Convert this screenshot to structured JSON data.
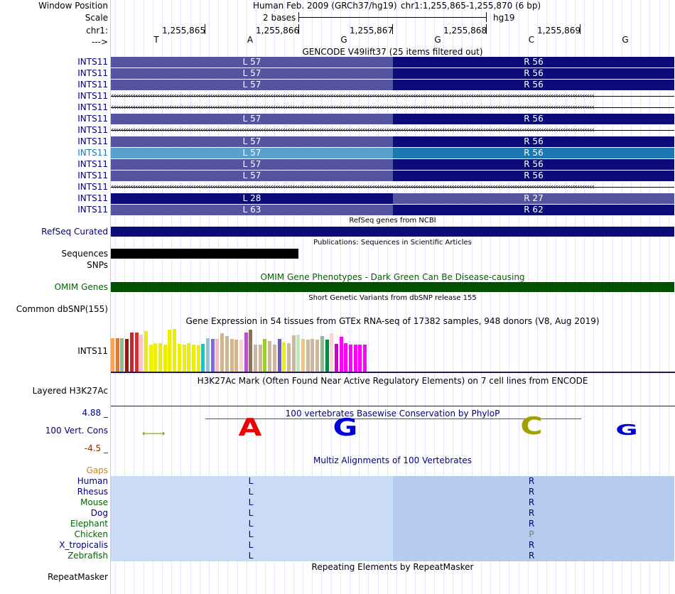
{
  "header": {
    "window_position": "Window Position",
    "assembly": "Human Feb. 2009 (GRCh37/hg19)",
    "position": "chr1:1,255,865-1,255,870 (6 bp)",
    "scale_label": "Scale",
    "scale_value": "2 bases",
    "scale_db": "hg19",
    "chrom_label": "chr1:",
    "arrow_label": "--->",
    "coords": [
      "1,255,865",
      "1,255,866",
      "1,255,867",
      "1,255,868",
      "1,255,869"
    ],
    "bases": [
      "T",
      "A",
      "G",
      "G",
      "C",
      "G"
    ]
  },
  "gencode": {
    "title": "GENCODE V49lift37 (25 items filtered out)",
    "rows": [
      {
        "name": "INTS11",
        "type": "block",
        "left": "L 57",
        "right": "R 56",
        "style": "a"
      },
      {
        "name": "INTS11",
        "type": "block",
        "left": "L 57",
        "right": "R 56",
        "style": "a"
      },
      {
        "name": "INTS11",
        "type": "block",
        "left": "L 57",
        "right": "R 56",
        "style": "a"
      },
      {
        "name": "INTS11",
        "type": "intron"
      },
      {
        "name": "INTS11",
        "type": "intron"
      },
      {
        "name": "INTS11",
        "type": "block",
        "left": "L 57",
        "right": "R 56",
        "style": "a"
      },
      {
        "name": "INTS11",
        "type": "intron"
      },
      {
        "name": "INTS11",
        "type": "block",
        "left": "L 57",
        "right": "R 56",
        "style": "a"
      },
      {
        "name": "INTS11",
        "type": "block",
        "left": "L 57",
        "right": "R 56",
        "style": "hl"
      },
      {
        "name": "INTS11",
        "type": "block",
        "left": "L 57",
        "right": "R 56",
        "style": "a"
      },
      {
        "name": "INTS11",
        "type": "block",
        "left": "L 57",
        "right": "R 56",
        "style": "a"
      },
      {
        "name": "INTS11",
        "type": "intron"
      },
      {
        "name": "INTS11",
        "type": "block",
        "left": "L 28",
        "right": "R 27",
        "style": "b"
      },
      {
        "name": "INTS11",
        "type": "block",
        "left": "L 63",
        "right": "R 62",
        "style": "a"
      }
    ]
  },
  "refseq": {
    "title": "RefSeq genes from NCBI",
    "label": "RefSeq Curated"
  },
  "publications": {
    "title": "Publications: Sequences in Scientific Articles",
    "seq_label": "Sequences",
    "snp_label": "SNPs"
  },
  "omim": {
    "title": "OMIM Gene Phenotypes - Dark Green Can Be Disease-causing",
    "label": "OMIM Genes"
  },
  "dbsnp": {
    "title": "Short Genetic Variants from dbSNP release 155",
    "label": "Common dbSNP(155)"
  },
  "gtex": {
    "title": "Gene Expression in 54 tissues from GTEx RNA-seq of 17382 samples, 948 donors (V8, Aug 2019)",
    "label": "INTS11",
    "levels": [
      0.75,
      0.75,
      0.75,
      0.73,
      0.87,
      0.87,
      0.83,
      0.9,
      0.6,
      0.63,
      0.63,
      0.6,
      0.94,
      0.96,
      0.62,
      0.6,
      0.63,
      0.6,
      0.58,
      0.62,
      0.75,
      0.73,
      0.73,
      0.85,
      0.79,
      0.73,
      0.71,
      0.71,
      0.87,
      0.94,
      0.6,
      0.6,
      0.73,
      0.69,
      0.6,
      0.73,
      0.65,
      0.63,
      0.81,
      0.83,
      0.73,
      0.71,
      0.73,
      0.71,
      0.79,
      0.71,
      0.85,
      0.62,
      0.77,
      0.63,
      0.6,
      0.6,
      0.6,
      0.6
    ],
    "colors": [
      "#FFA54F",
      "#EE7621",
      "#8FBC8F",
      "#8B1A1A",
      "#CD2626",
      "#CD3333",
      "#FFC1C1",
      "#EEEE00",
      "#EEEE00",
      "#EEEE00",
      "#EEEE00",
      "#EEEE00",
      "#EEEE00",
      "#EEEE00",
      "#EEEE00",
      "#EEEE00",
      "#EEEE00",
      "#EEEE00",
      "#EEEE00",
      "#00CDCD",
      "#9AC0CD",
      "#7A67EE",
      "#FFB6C1",
      "#D2B48C",
      "#D2B48C",
      "#D2B48C",
      "#D2B48C",
      "#FFD4D4",
      "#B452CD",
      "#8B7355",
      "#CDB79E",
      "#CDB79E",
      "#9ACD32",
      "#CDB79E",
      "#CDB79E",
      "#6A5ACD",
      "#EEEE00",
      "#CDB79E",
      "#CDB79E",
      "#B4EEB4",
      "#EEC591",
      "#CDB79E",
      "#CDB79E",
      "#CDB79E",
      "#8FBC8F",
      "#008B45",
      "#FFD4D4",
      "#CD00CD",
      "#FF00FF",
      "#FF00FF",
      "#FF00FF",
      "#FF00FF",
      "#FF00FF",
      "#FF00FF"
    ]
  },
  "h3k27ac": {
    "title": "H3K27Ac Mark (Often Found Near Active Regulatory Elements) on 7 cell lines from ENCODE",
    "label": "Layered H3K27Ac"
  },
  "conservation": {
    "title": "100 vertebrates Basewise Conservation by PhyloP",
    "label": "100 Vert. Cons",
    "y_max": "4.88 _",
    "y_min": "-4.5 _",
    "letters": [
      {
        "base": "A",
        "color": "#EE0000"
      },
      {
        "base": "G",
        "color": "#0000DD"
      },
      {
        "base": "C",
        "color": "#A0A000"
      },
      {
        "base": "G",
        "color": "#0000DD"
      }
    ]
  },
  "multiz": {
    "title": "Multiz Alignments of 100 Vertebrates",
    "gaps_label": "Gaps",
    "species": [
      {
        "name": "Human",
        "left": "L",
        "right": "R",
        "color": "#000080"
      },
      {
        "name": "Rhesus",
        "left": "L",
        "right": "R",
        "color": "#000080"
      },
      {
        "name": "Mouse",
        "left": "L",
        "right": "R",
        "color": "#006400"
      },
      {
        "name": "Dog",
        "left": "L",
        "right": "R",
        "color": "#000080"
      },
      {
        "name": "Elephant",
        "left": "L",
        "right": "R",
        "color": "#006400"
      },
      {
        "name": "Chicken",
        "left": "L",
        "right": "P",
        "color": "#006400"
      },
      {
        "name": "X_tropicalis",
        "left": "L",
        "right": "R",
        "color": "#000080"
      },
      {
        "name": "Zebrafish",
        "left": "L",
        "right": "R",
        "color": "#006400"
      }
    ]
  },
  "repeatmasker": {
    "title": "Repeating Elements by RepeatMasker",
    "label": "RepeatMasker"
  }
}
